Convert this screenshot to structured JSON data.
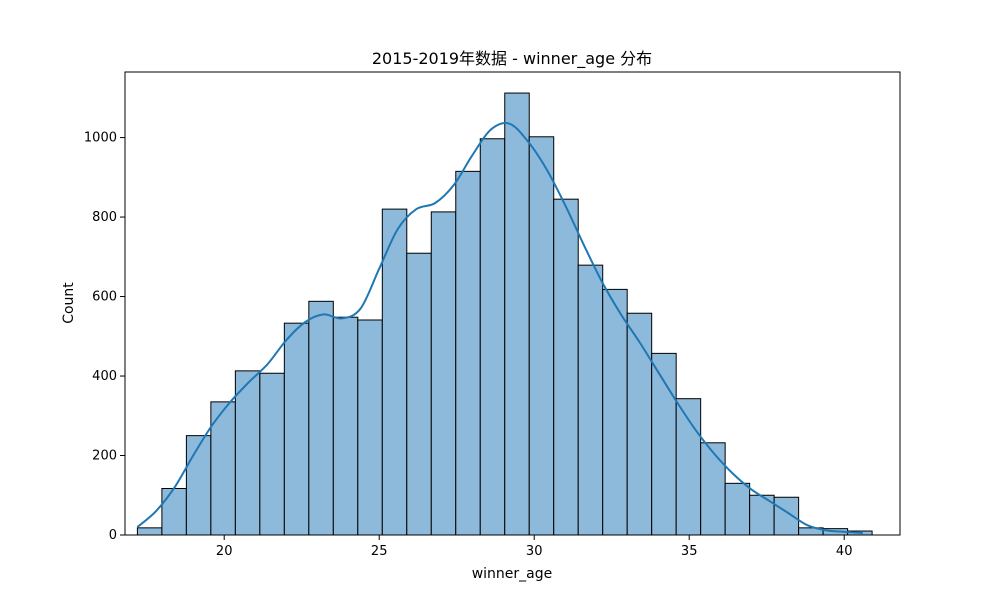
{
  "chart_data": {
    "type": "histogram",
    "title": "2015-2019年数据 - winner_age 分布",
    "xlabel": "winner_age",
    "ylabel": "Count",
    "xlim": [
      16.8,
      41.8
    ],
    "ylim": [
      0,
      1165
    ],
    "xticks": [
      20,
      25,
      30,
      35,
      40
    ],
    "yticks": [
      0,
      200,
      400,
      600,
      800,
      1000
    ],
    "bin_start": 17.2,
    "bin_width": 0.79,
    "counts": [
      18,
      117,
      250,
      335,
      413,
      407,
      533,
      588,
      548,
      541,
      820,
      709,
      813,
      915,
      997,
      1112,
      1002,
      845,
      679,
      618,
      558,
      457,
      343,
      232,
      130,
      100,
      95,
      18,
      16,
      10
    ],
    "kde": {
      "x": [
        17.2,
        17.8,
        18.4,
        19.0,
        19.6,
        20.2,
        20.8,
        21.4,
        22.0,
        22.6,
        23.2,
        23.8,
        24.4,
        25.0,
        25.6,
        26.2,
        26.8,
        27.4,
        28.0,
        28.6,
        29.2,
        29.8,
        30.4,
        31.0,
        31.6,
        32.2,
        32.8,
        33.4,
        34.0,
        34.6,
        35.2,
        35.8,
        36.4,
        37.0,
        37.6,
        38.2,
        38.8,
        39.4,
        40.0,
        40.6
      ],
      "y": [
        20,
        60,
        120,
        200,
        275,
        335,
        385,
        430,
        490,
        535,
        555,
        545,
        570,
        670,
        770,
        820,
        835,
        880,
        955,
        1020,
        1035,
        990,
        920,
        830,
        730,
        635,
        555,
        485,
        410,
        335,
        265,
        205,
        155,
        115,
        85,
        55,
        25,
        12,
        8,
        5
      ]
    },
    "grid": false,
    "bar_color": "#8DBADB",
    "bar_edge_color": "#000000",
    "kde_color": "#1F77B4"
  }
}
